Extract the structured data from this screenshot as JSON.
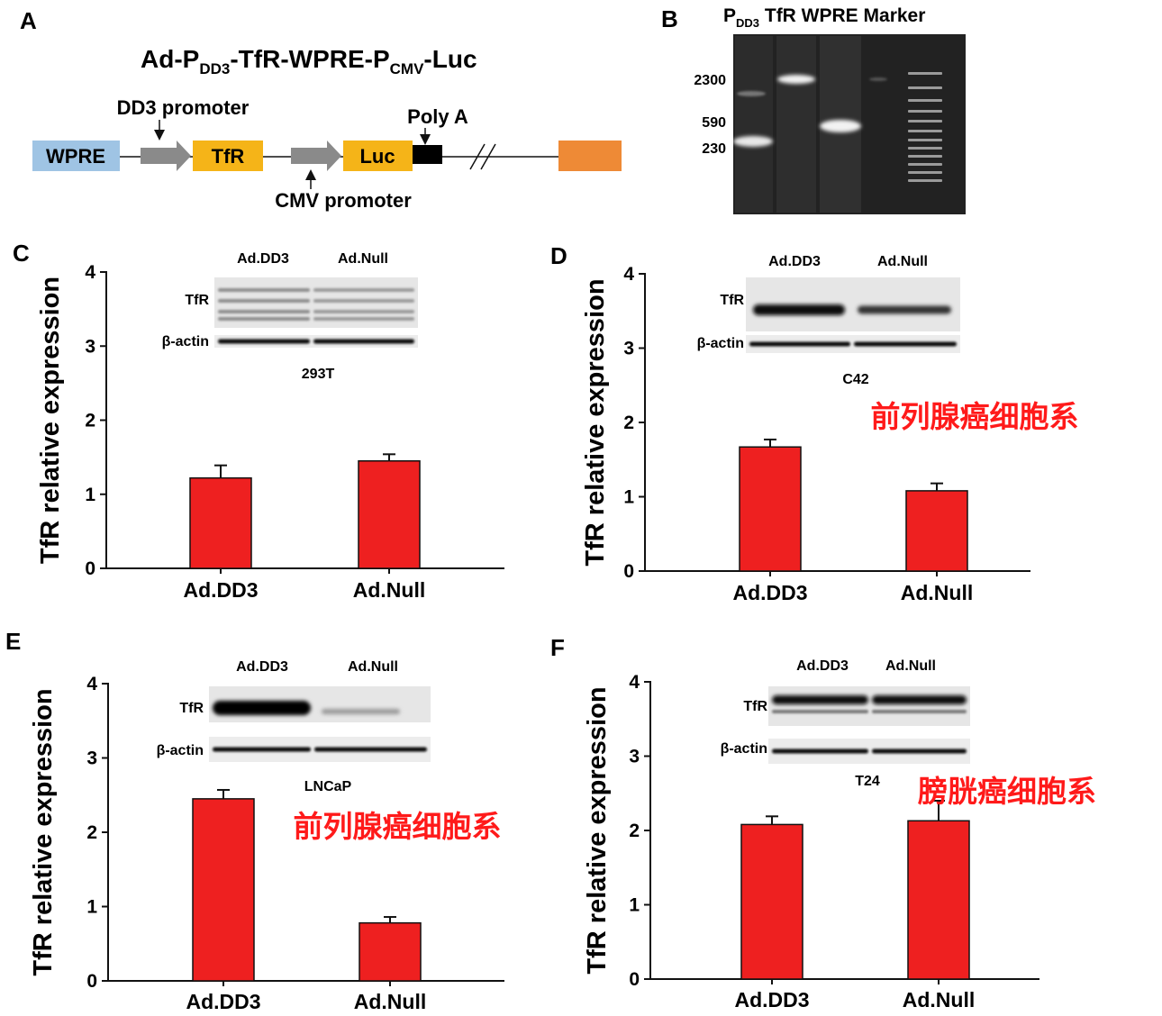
{
  "panel_a": {
    "label": "A",
    "title_main": "Ad-P",
    "title_sub1": "DD3",
    "title_mid": "-TfR-WPRE-P",
    "title_sub2": "CMV",
    "title_end": "-Luc",
    "dd3_promoter": "DD3 promoter",
    "cmv_promoter": "CMV promoter",
    "poly_a": "Poly A",
    "box_wpre": "WPRE",
    "box_tfr": "TfR",
    "box_luc": "Luc",
    "colors": {
      "wpre": "#9fc4e4",
      "gene": "#f5b418",
      "promoter": "#8a8a8a",
      "polya": "#000000",
      "end": "#ee8a36"
    }
  },
  "panel_b": {
    "label": "B",
    "lane_header_p": "P",
    "lane_header_sub": "DD3",
    "lane_header_rest": " TfR WPRE Marker",
    "sizes": [
      "2300",
      "590",
      "230"
    ]
  },
  "chart_data": [
    {
      "type": "bar",
      "panel": "C",
      "title": "",
      "categories": [
        "Ad.DD3",
        "Ad.Null"
      ],
      "values": [
        1.22,
        1.45
      ],
      "errors": [
        0.17,
        0.09
      ],
      "ylabel": "TfR relative expression",
      "ylim": [
        0,
        4
      ],
      "yticks": [
        "0",
        "1",
        "2",
        "3",
        "4"
      ],
      "blot": {
        "lanes": [
          "Ad.DD3",
          "Ad.Null"
        ],
        "rows": [
          "TfR",
          "β-actin"
        ],
        "cell_line": "293T"
      },
      "annotation": "",
      "bar_color": "#ee2020"
    },
    {
      "type": "bar",
      "panel": "D",
      "title": "",
      "categories": [
        "Ad.DD3",
        "Ad.Null"
      ],
      "values": [
        1.67,
        1.08
      ],
      "errors": [
        0.1,
        0.1
      ],
      "ylabel": "TfR relative expression",
      "ylim": [
        0,
        4
      ],
      "yticks": [
        "0",
        "1",
        "2",
        "3",
        "4"
      ],
      "blot": {
        "lanes": [
          "Ad.DD3",
          "Ad.Null"
        ],
        "rows": [
          "TfR",
          "β-actin"
        ],
        "cell_line": "C42"
      },
      "annotation": "前列腺癌细胞系",
      "bar_color": "#ee2020"
    },
    {
      "type": "bar",
      "panel": "E",
      "title": "",
      "categories": [
        "Ad.DD3",
        "Ad.Null"
      ],
      "values": [
        2.45,
        0.78
      ],
      "errors": [
        0.12,
        0.08
      ],
      "ylabel": "TfR relative expression",
      "ylim": [
        0,
        4
      ],
      "yticks": [
        "0",
        "1",
        "2",
        "3",
        "4"
      ],
      "blot": {
        "lanes": [
          "Ad.DD3",
          "Ad.Null"
        ],
        "rows": [
          "TfR",
          "β-actin"
        ],
        "cell_line": "LNCaP"
      },
      "annotation": "前列腺癌细胞系",
      "bar_color": "#ee2020"
    },
    {
      "type": "bar",
      "panel": "F",
      "title": "",
      "categories": [
        "Ad.DD3",
        "Ad.Null"
      ],
      "values": [
        2.08,
        2.13
      ],
      "errors": [
        0.11,
        0.27
      ],
      "ylabel": "TfR relative expression",
      "ylim": [
        0,
        4
      ],
      "yticks": [
        "0",
        "1",
        "2",
        "3",
        "4"
      ],
      "blot": {
        "lanes": [
          "Ad.DD3",
          "Ad.Null"
        ],
        "rows": [
          "TfR",
          "β-actin"
        ],
        "cell_line": "T24"
      },
      "annotation": "膀胱癌细胞系",
      "bar_color": "#ee2020"
    }
  ]
}
